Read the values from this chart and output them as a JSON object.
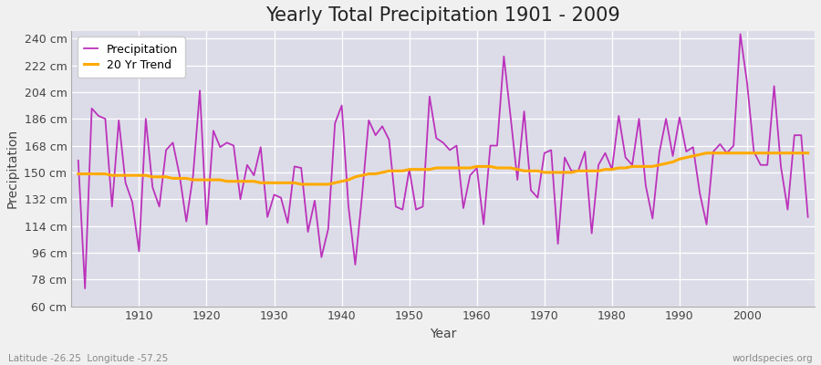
{
  "title": "Yearly Total Precipitation 1901 - 2009",
  "xlabel": "Year",
  "ylabel": "Precipitation",
  "lat_lon_label": "Latitude -26.25  Longitude -57.25",
  "watermark": "worldspecies.org",
  "years": [
    1901,
    1902,
    1903,
    1904,
    1905,
    1906,
    1907,
    1908,
    1909,
    1910,
    1911,
    1912,
    1913,
    1914,
    1915,
    1916,
    1917,
    1918,
    1919,
    1920,
    1921,
    1922,
    1923,
    1924,
    1925,
    1926,
    1927,
    1928,
    1929,
    1930,
    1931,
    1932,
    1933,
    1934,
    1935,
    1936,
    1937,
    1938,
    1939,
    1940,
    1941,
    1942,
    1943,
    1944,
    1945,
    1946,
    1947,
    1948,
    1949,
    1950,
    1951,
    1952,
    1953,
    1954,
    1955,
    1956,
    1957,
    1958,
    1959,
    1960,
    1961,
    1962,
    1963,
    1964,
    1965,
    1966,
    1967,
    1968,
    1969,
    1970,
    1971,
    1972,
    1973,
    1974,
    1975,
    1976,
    1977,
    1978,
    1979,
    1980,
    1981,
    1982,
    1983,
    1984,
    1985,
    1986,
    1987,
    1988,
    1989,
    1990,
    1991,
    1992,
    1993,
    1994,
    1995,
    1996,
    1997,
    1998,
    1999,
    2000,
    2001,
    2002,
    2003,
    2004,
    2005,
    2006,
    2007,
    2008,
    2009
  ],
  "precipitation": [
    158,
    72,
    193,
    188,
    186,
    127,
    185,
    143,
    130,
    97,
    186,
    140,
    127,
    165,
    170,
    148,
    117,
    148,
    205,
    115,
    178,
    167,
    170,
    168,
    132,
    155,
    148,
    167,
    120,
    135,
    133,
    116,
    154,
    153,
    110,
    131,
    93,
    112,
    183,
    195,
    127,
    88,
    134,
    185,
    175,
    181,
    172,
    127,
    125,
    152,
    125,
    127,
    201,
    173,
    170,
    165,
    168,
    126,
    148,
    153,
    115,
    168,
    168,
    228,
    187,
    145,
    191,
    138,
    133,
    163,
    165,
    102,
    160,
    151,
    151,
    164,
    109,
    155,
    163,
    152,
    188,
    160,
    155,
    186,
    141,
    119,
    163,
    186,
    161,
    187,
    164,
    167,
    136,
    115,
    164,
    169,
    163,
    168,
    243,
    210,
    164,
    155,
    155,
    208,
    154,
    125,
    175,
    175,
    120
  ],
  "trend": [
    149,
    149,
    149,
    149,
    149,
    148,
    148,
    148,
    148,
    148,
    148,
    147,
    147,
    147,
    146,
    146,
    146,
    145,
    145,
    145,
    145,
    145,
    144,
    144,
    144,
    144,
    144,
    143,
    143,
    143,
    143,
    143,
    143,
    142,
    142,
    142,
    142,
    142,
    143,
    144,
    145,
    147,
    148,
    149,
    149,
    150,
    151,
    151,
    151,
    152,
    152,
    152,
    152,
    153,
    153,
    153,
    153,
    153,
    153,
    154,
    154,
    154,
    153,
    153,
    153,
    152,
    151,
    151,
    151,
    150,
    150,
    150,
    150,
    150,
    151,
    151,
    151,
    151,
    152,
    152,
    153,
    153,
    154,
    154,
    154,
    154,
    155,
    156,
    157,
    159,
    160,
    161,
    162,
    163,
    163,
    163,
    163,
    163,
    163,
    163,
    163,
    163,
    163,
    163,
    163,
    163,
    163,
    163,
    163
  ],
  "precip_color": "#bb33bb",
  "trend_color": "#ffaa00",
  "fig_bg_color": "#f0f0f0",
  "plot_bg_color": "#dcdce8",
  "grid_color": "#ffffff",
  "spine_color": "#aaaaaa",
  "ylim": [
    60,
    245
  ],
  "yticks": [
    60,
    78,
    96,
    114,
    132,
    150,
    168,
    186,
    204,
    222,
    240
  ],
  "xlim_min": 1900,
  "xlim_max": 2010,
  "title_fontsize": 15,
  "tick_fontsize": 9,
  "label_fontsize": 10,
  "legend_fontsize": 9
}
